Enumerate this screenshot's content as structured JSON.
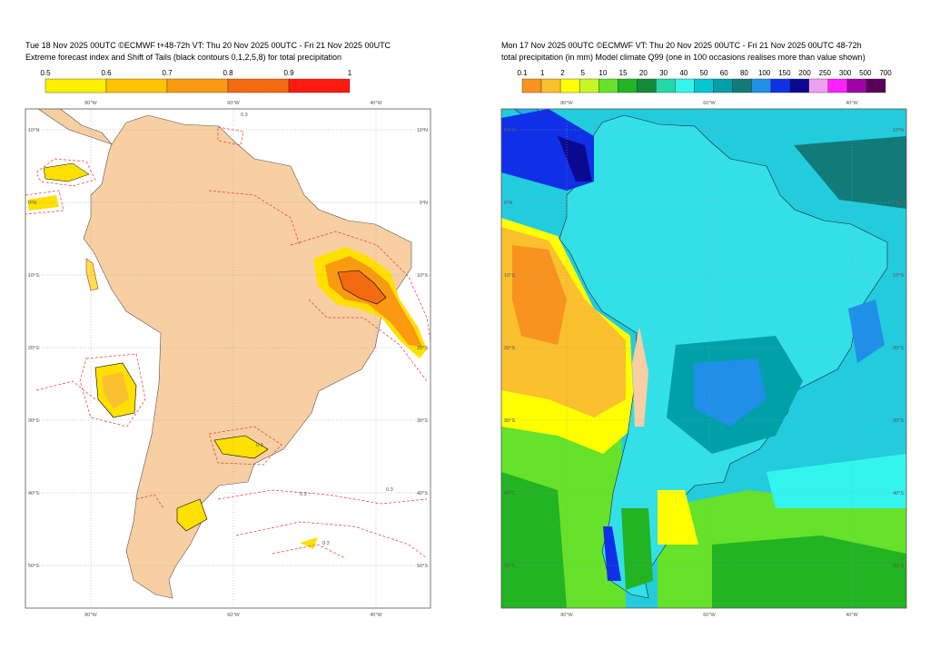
{
  "left_panel": {
    "header": [
      "Tue 18 Nov 2025 00UTC ©ECMWF t+48-72h  VT: Thu 20 Nov 2025 00UTC - Fri 21 Nov 2025 00UTC",
      "Extreme forecast index and Shift of Tails (black contours 0,1,2,5,8) for total precipitation"
    ],
    "colorbar": {
      "ticks": [
        0.5,
        0.6,
        0.7,
        0.8,
        0.9,
        1
      ],
      "colors": [
        "#ffee00",
        "#ffc400",
        "#fb9a10",
        "#f36a10",
        "#ff1a10"
      ]
    },
    "contour_label": "0.3"
  },
  "right_panel": {
    "header": [
      "Mon 17 Nov 2025 00UTC ©ECMWF VT: Thu 20 Nov 2025 00UTC - Fri 21 Nov 2025 00UTC   48-72h",
      "total precipitation (in mm)  Model climate Q99 (one in 100 occasions realises more than value shown)"
    ],
    "colorbar": {
      "ticks": [
        0.1,
        1,
        2,
        5,
        10,
        15,
        20,
        30,
        40,
        50,
        60,
        80,
        100,
        150,
        200,
        250,
        300,
        500,
        700
      ],
      "colors": [
        "#f7931e",
        "#fbc02d",
        "#ffff00",
        "#c8f526",
        "#66e22a",
        "#22b422",
        "#158a3a",
        "#22d8a8",
        "#33f5ee",
        "#00c8d2",
        "#00a0a8",
        "#137a7a",
        "#1f8fe8",
        "#1030e8",
        "#0a0a90",
        "#f0a0f0",
        "#ff20ff",
        "#a000a8",
        "#5a005a"
      ]
    }
  },
  "map_axes": {
    "lon_labels": [
      "80°W",
      "60°W",
      "40°W"
    ],
    "lat_labels": [
      "10°N",
      "0°N",
      "10°S",
      "20°S",
      "30°S",
      "40°S",
      "50°S"
    ]
  }
}
